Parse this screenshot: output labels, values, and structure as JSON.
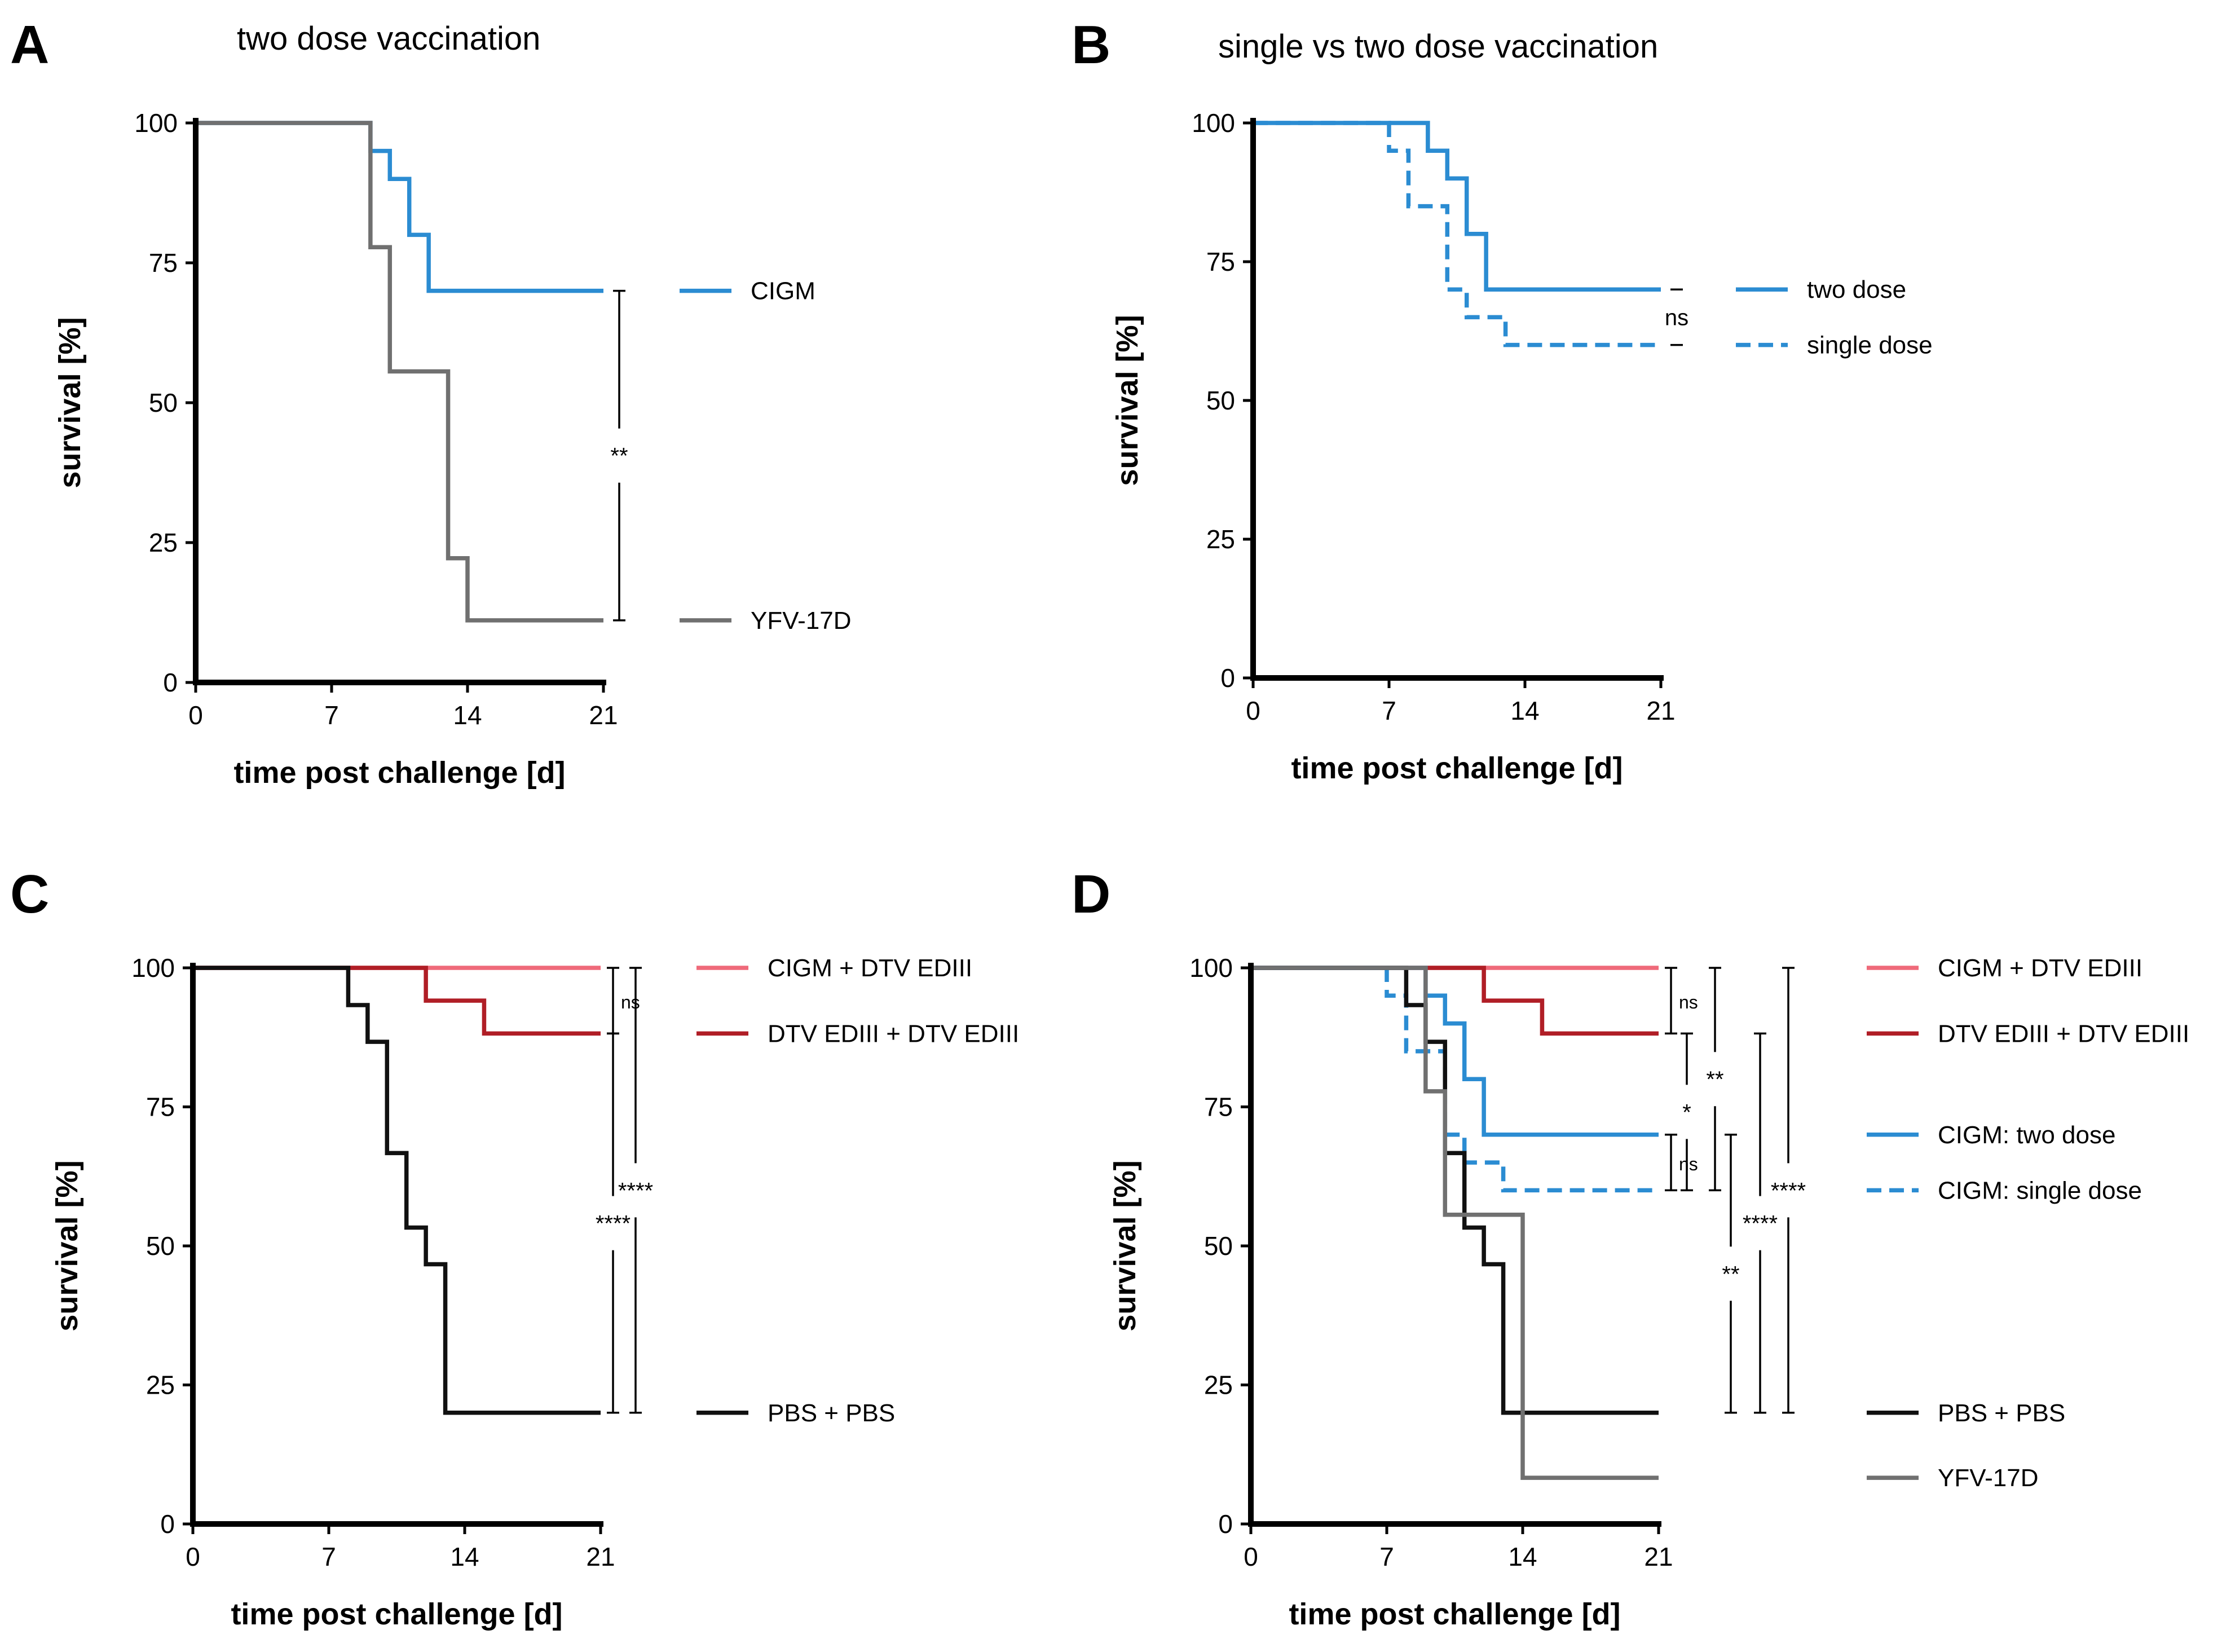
{
  "colors": {
    "blue": "#2b8cd2",
    "gray": "#707070",
    "pink": "#ef6a7a",
    "red": "#b01e26",
    "black": "#111111"
  },
  "chart_data": [
    {
      "id": "A",
      "type": "line",
      "letter": "A",
      "title": "two dose vaccination",
      "xlabel": "time post challenge [d]",
      "ylabel": "survival [%]",
      "xlim": [
        0,
        21
      ],
      "ylim": [
        0,
        100
      ],
      "xticks": [
        0,
        7,
        14,
        21
      ],
      "yticks": [
        0,
        25,
        50,
        75,
        100
      ],
      "series": [
        {
          "name": "CIGM",
          "color": "blue",
          "dash": false,
          "x": [
            0,
            9,
            10,
            11,
            12,
            21
          ],
          "y": [
            100,
            95,
            90,
            80,
            70,
            70
          ]
        },
        {
          "name": "YFV-17D",
          "color": "gray",
          "dash": false,
          "x": [
            0,
            9,
            10,
            13,
            14,
            21
          ],
          "y": [
            100,
            77.8,
            55.6,
            22.2,
            11.1,
            11.1
          ]
        }
      ],
      "legend": [
        {
          "label": "CIGM",
          "color": "blue",
          "dash": false,
          "y": 70
        },
        {
          "label": "YFV-17D",
          "color": "gray",
          "dash": false,
          "y": 11.1
        }
      ],
      "comparisons": [
        {
          "y1": 70,
          "y2": 11.1,
          "label": "**",
          "dx": 28
        }
      ]
    },
    {
      "id": "B",
      "type": "line",
      "letter": "B",
      "title": "single vs two dose vaccination",
      "xlabel": "time post challenge [d]",
      "ylabel": "survival [%]",
      "xlim": [
        0,
        21
      ],
      "ylim": [
        0,
        100
      ],
      "xticks": [
        0,
        7,
        14,
        21
      ],
      "yticks": [
        0,
        25,
        50,
        75,
        100
      ],
      "series": [
        {
          "name": "two dose",
          "color": "blue",
          "dash": false,
          "x": [
            0,
            9,
            10,
            11,
            12,
            21
          ],
          "y": [
            100,
            95,
            90,
            80,
            70,
            70
          ]
        },
        {
          "name": "single dose",
          "color": "blue",
          "dash": true,
          "x": [
            0,
            7,
            8,
            10,
            11,
            13,
            21
          ],
          "y": [
            100,
            95,
            85,
            70,
            65,
            60,
            60
          ]
        }
      ],
      "legend": [
        {
          "label": "two dose",
          "color": "blue",
          "dash": false,
          "y": 70
        },
        {
          "label": "single dose",
          "color": "blue",
          "dash": true,
          "y": 60
        }
      ],
      "comparisons": [
        {
          "y1": 70,
          "y2": 60,
          "label": "ns",
          "dx": 28
        }
      ]
    },
    {
      "id": "C",
      "type": "line",
      "letter": "C",
      "title": "",
      "xlabel": "time post challenge [d]",
      "ylabel": "survival [%]",
      "xlim": [
        0,
        21
      ],
      "ylim": [
        0,
        100
      ],
      "xticks": [
        0,
        7,
        14,
        21
      ],
      "yticks": [
        0,
        25,
        50,
        75,
        100
      ],
      "series": [
        {
          "name": "CIGM + DTV EDIII",
          "color": "pink",
          "dash": false,
          "x": [
            0,
            21
          ],
          "y": [
            100,
            100
          ]
        },
        {
          "name": "DTV EDIII + DTV EDIII",
          "color": "red",
          "dash": false,
          "x": [
            0,
            12,
            15,
            21
          ],
          "y": [
            100,
            94.1,
            88.2,
            88.2
          ]
        },
        {
          "name": "PBS + PBS",
          "color": "black",
          "dash": false,
          "x": [
            0,
            8,
            9,
            10,
            11,
            12,
            13,
            21
          ],
          "y": [
            100,
            93.3,
            86.7,
            66.7,
            53.3,
            46.7,
            20,
            20
          ]
        }
      ],
      "legend": [
        {
          "label": "CIGM + DTV EDIII",
          "color": "pink",
          "dash": false,
          "y": 100
        },
        {
          "label": "DTV EDIII + DTV EDIII",
          "color": "red",
          "dash": false,
          "y": 88.2
        },
        {
          "label": "PBS + PBS",
          "color": "black",
          "dash": false,
          "y": 20
        }
      ],
      "comparisons": [
        {
          "y1": 100,
          "y2": 88.2,
          "label": "ns",
          "dx": 22,
          "small": true
        },
        {
          "y1": 88.2,
          "y2": 20,
          "label": "****",
          "dx": 22
        },
        {
          "y1": 100,
          "y2": 20,
          "label": "****",
          "dx": 62
        }
      ]
    },
    {
      "id": "D",
      "type": "line",
      "letter": "D",
      "title": "",
      "xlabel": "time post challenge [d]",
      "ylabel": "survival [%]",
      "xlim": [
        0,
        21
      ],
      "ylim": [
        0,
        100
      ],
      "xticks": [
        0,
        7,
        14,
        21
      ],
      "yticks": [
        0,
        25,
        50,
        75,
        100
      ],
      "series": [
        {
          "name": "CIGM + DTV EDIII",
          "color": "pink",
          "dash": false,
          "x": [
            0,
            21
          ],
          "y": [
            100,
            100
          ]
        },
        {
          "name": "DTV EDIII + DTV EDIII",
          "color": "red",
          "dash": false,
          "x": [
            0,
            12,
            15,
            21
          ],
          "y": [
            100,
            94.1,
            88.2,
            88.2
          ]
        },
        {
          "name": "CIGM: two dose",
          "color": "blue",
          "dash": false,
          "x": [
            0,
            9,
            10,
            11,
            12,
            21
          ],
          "y": [
            100,
            95,
            90,
            80,
            70,
            70
          ]
        },
        {
          "name": "CIGM: single dose",
          "color": "blue",
          "dash": true,
          "x": [
            0,
            7,
            8,
            10,
            11,
            13,
            21
          ],
          "y": [
            100,
            95,
            85,
            70,
            65,
            60,
            60
          ]
        },
        {
          "name": "PBS + PBS",
          "color": "black",
          "dash": false,
          "x": [
            0,
            8,
            9,
            10,
            11,
            12,
            13,
            21
          ],
          "y": [
            100,
            93.3,
            86.7,
            66.7,
            53.3,
            46.7,
            20,
            20
          ]
        },
        {
          "name": "YFV-17D",
          "color": "gray",
          "dash": false,
          "x": [
            0,
            9,
            10,
            13,
            14,
            21
          ],
          "y": [
            100,
            77.8,
            55.6,
            55.6,
            8.3,
            8.3
          ]
        }
      ],
      "legend": [
        {
          "label": "CIGM + DTV EDIII",
          "color": "pink",
          "dash": false,
          "y": 100
        },
        {
          "label": "DTV EDIII + DTV EDIII",
          "color": "red",
          "dash": false,
          "y": 88.2
        },
        {
          "label": "CIGM: two dose",
          "color": "blue",
          "dash": false,
          "y": 70
        },
        {
          "label": "CIGM: single dose",
          "color": "blue",
          "dash": true,
          "y": 60
        },
        {
          "label": "PBS + PBS",
          "color": "black",
          "dash": false,
          "y": 20
        },
        {
          "label": "YFV-17D",
          "color": "gray",
          "dash": false,
          "y": 8.3
        }
      ],
      "comparisons": [
        {
          "y1": 100,
          "y2": 88.2,
          "label": "ns",
          "dx": 22,
          "small": true
        },
        {
          "y1": 70,
          "y2": 60,
          "label": "ns",
          "dx": 22,
          "small": true
        },
        {
          "y1": 88.2,
          "y2": 60,
          "label": "*",
          "dx": 50
        },
        {
          "y1": 100,
          "y2": 60,
          "label": "**",
          "dx": 100
        },
        {
          "y1": 70,
          "y2": 20,
          "label": "**",
          "dx": 128
        },
        {
          "y1": 88.2,
          "y2": 20,
          "label": "****",
          "dx": 180
        },
        {
          "y1": 100,
          "y2": 20,
          "label": "****",
          "dx": 230
        }
      ]
    }
  ]
}
